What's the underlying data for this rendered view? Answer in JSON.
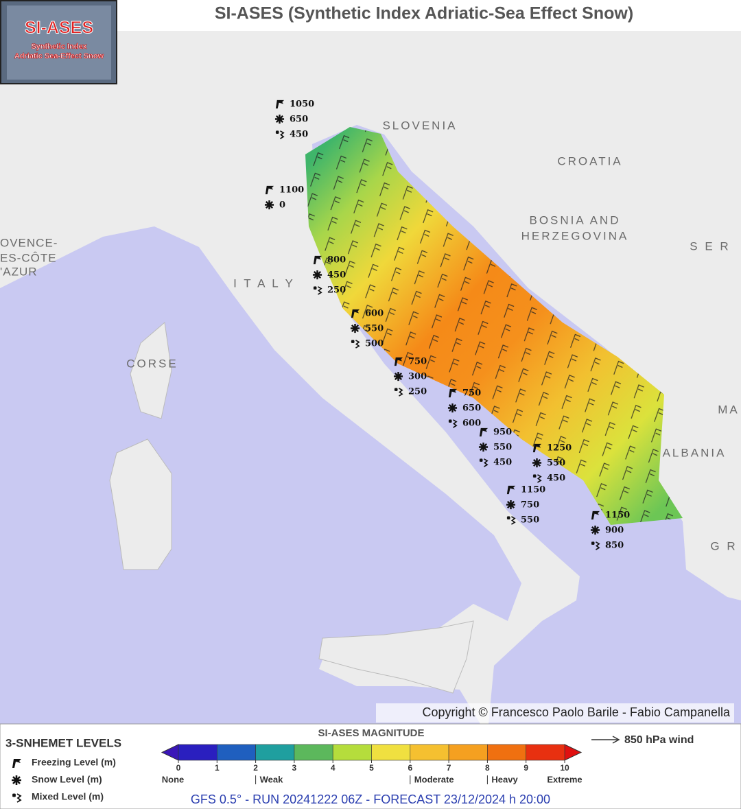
{
  "header": {
    "title": "SI-ASES (Synthetic Index Adriatic-Sea Effect Snow)"
  },
  "logo": {
    "title": "SI-ASES",
    "line_1": "Synthetic Index",
    "line_2": "Adriatic Sea-Effect Snow"
  },
  "map_labels": [
    "SLOVENIA",
    "CROATIA",
    "BOSNIA AND",
    "HERZEGOVINA",
    "S E R",
    "I T A L Y",
    "CORSE",
    "ALBANIA",
    "MA",
    "G R",
    "OVENCE-",
    "ES-CÔTE",
    "'AZUR"
  ],
  "stations": [
    {
      "freezing": 1050,
      "snow": 650,
      "mixed": 450
    },
    {
      "freezing": 1100,
      "snow": 0
    },
    {
      "freezing": 800,
      "snow": 450,
      "mixed": 250
    },
    {
      "freezing": 600,
      "snow": 550,
      "mixed": 500
    },
    {
      "freezing": 750,
      "snow": 300,
      "mixed": 250
    },
    {
      "freezing": 750,
      "snow": 650,
      "mixed": 600
    },
    {
      "freezing": 950,
      "snow": 550,
      "mixed": 450
    },
    {
      "freezing": 1250,
      "snow": 550,
      "mixed": 450
    },
    {
      "freezing": 1150,
      "snow": 750,
      "mixed": 550
    },
    {
      "freezing": 1150,
      "snow": 900,
      "mixed": 850
    }
  ],
  "copyright": "Copyright © Francesco Paolo Barile - Fabio Campanella",
  "legend": {
    "title": "3-SNHEMET LEVELS",
    "items": [
      "Freezing Level (m)",
      "Snow Level (m)",
      "Mixed Level (m)"
    ]
  },
  "colorbar": {
    "title": "SI-ASES MAGNITUDE",
    "ticks": [
      0,
      1,
      2,
      3,
      4,
      5,
      6,
      7,
      8,
      9,
      10
    ],
    "classes": [
      {
        "value": 0,
        "label": "None"
      },
      {
        "value": 2,
        "label": "Weak"
      },
      {
        "value": 6,
        "label": "Moderate"
      },
      {
        "value": 8,
        "label": "Heavy"
      },
      {
        "value": 10,
        "label": "Extreme"
      }
    ]
  },
  "wind_legend": "850 hPa wind",
  "footer": "GFS 0.5° - RUN 20241222 06Z - FORECAST 23/12/2024 h 20:00"
}
